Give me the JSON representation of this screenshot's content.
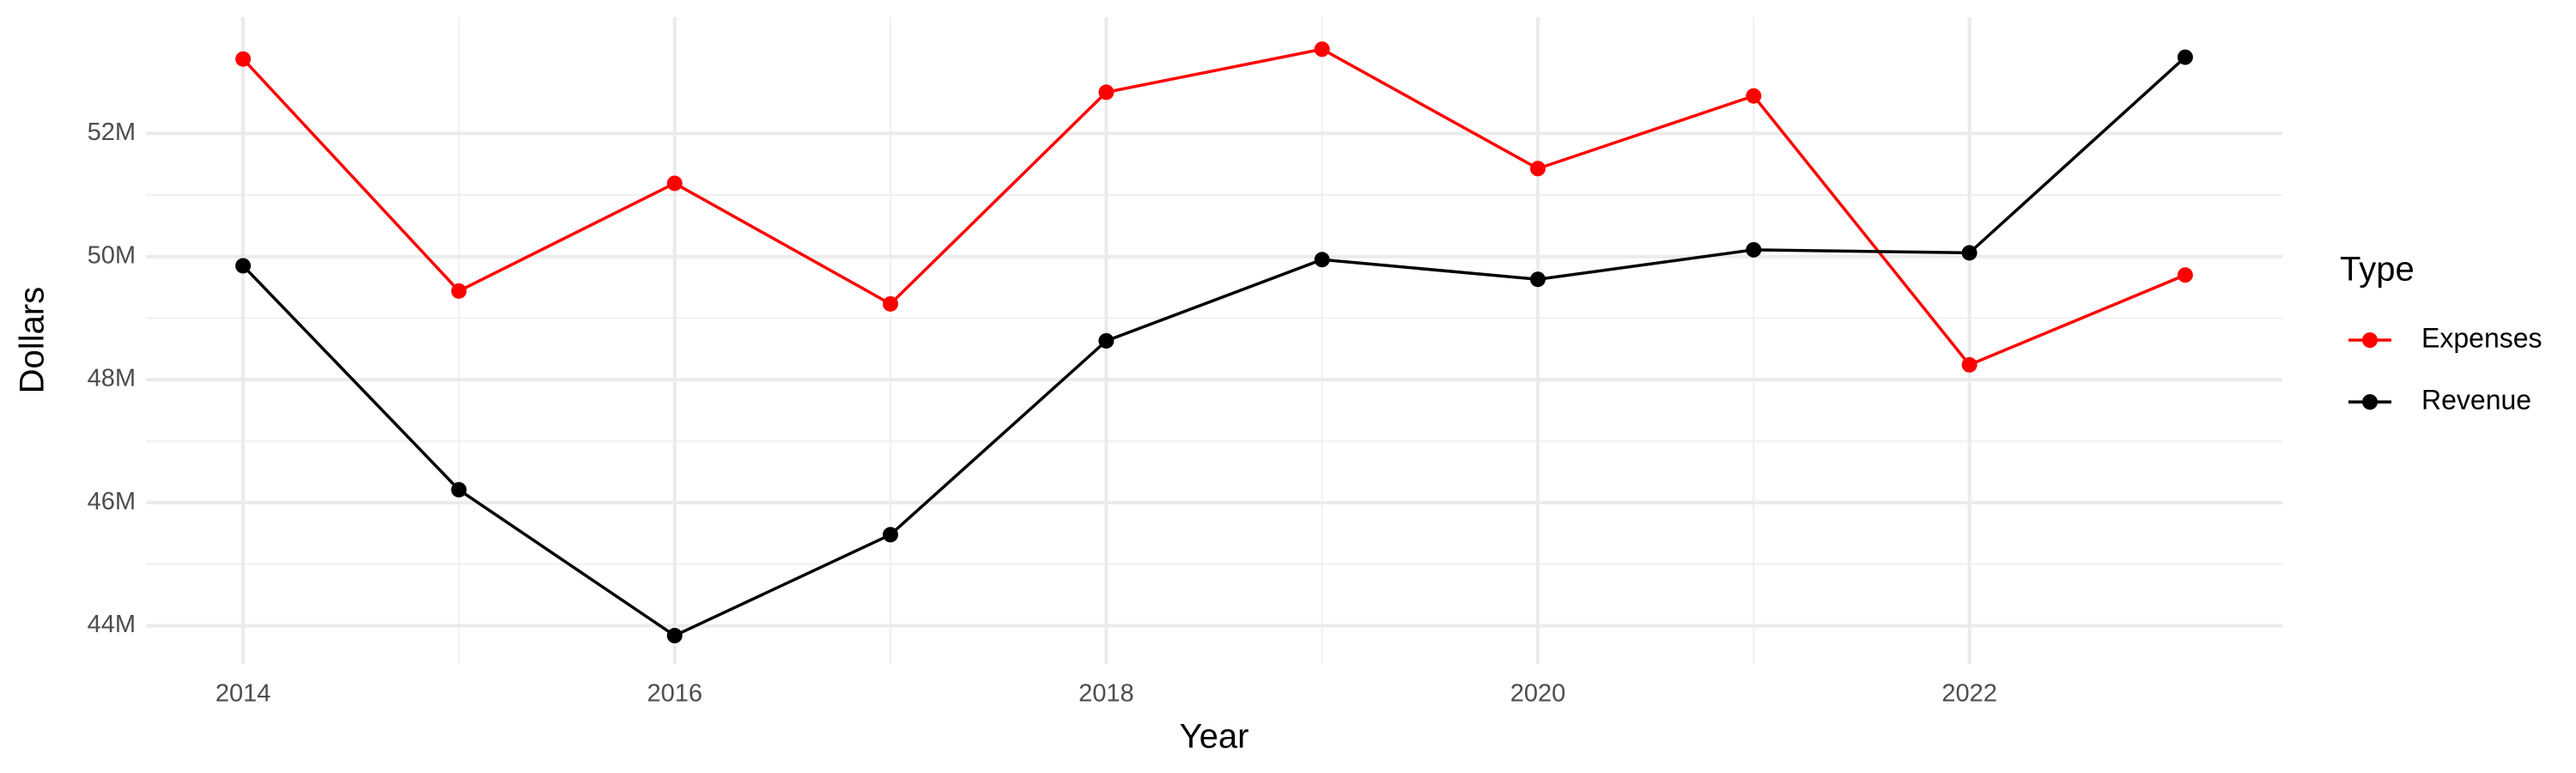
{
  "chart_data": {
    "type": "line",
    "x_label": "Year",
    "y_label": "Dollars",
    "legend_title": "Type",
    "legend": "right",
    "x": [
      2014,
      2015,
      2016,
      2017,
      2018,
      2019,
      2020,
      2021,
      2022,
      2023
    ],
    "series": [
      {
        "name": "Expenses",
        "color": "#ff0000",
        "values": [
          53210000,
          49440000,
          51190000,
          49230000,
          52670000,
          53370000,
          51430000,
          52610000,
          48240000,
          49700000
        ]
      },
      {
        "name": "Revenue",
        "color": "#000000",
        "values": [
          49850000,
          46210000,
          43840000,
          45480000,
          48630000,
          49950000,
          49630000,
          50110000,
          50060000,
          53240000
        ]
      }
    ],
    "xlim": [
      2013.55,
      2023.45
    ],
    "xticks": [
      2014,
      2016,
      2018,
      2020,
      2022
    ],
    "ylim": [
      43380000,
      53890000
    ],
    "yticks": [
      {
        "value": 44000000,
        "label": "44M"
      },
      {
        "value": 46000000,
        "label": "46M"
      },
      {
        "value": 48000000,
        "label": "48M"
      },
      {
        "value": 50000000,
        "label": "50M"
      },
      {
        "value": 52000000,
        "label": "52M"
      }
    ],
    "grid": true,
    "minor_grid": true
  }
}
